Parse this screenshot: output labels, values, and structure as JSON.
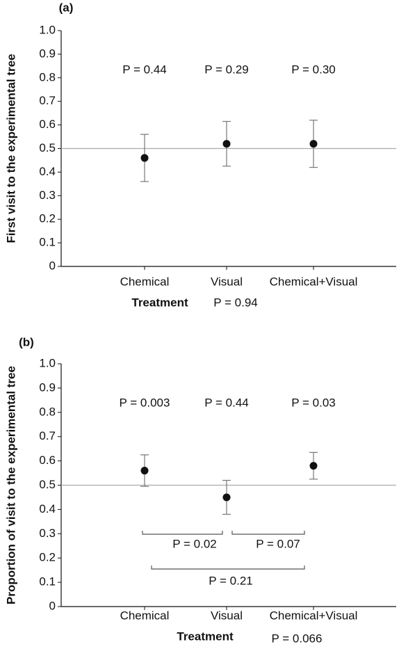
{
  "chart_data": [
    {
      "type": "errorbar",
      "panel_label": "(a)",
      "ylabel": "First visit to the experimental tree",
      "xlabel": "Treatment",
      "xlabel_note": "P = 0.94",
      "categories": [
        "Chemical",
        "Visual",
        "Chemical+Visual"
      ],
      "values": [
        0.46,
        0.52,
        0.52
      ],
      "errors": [
        0.1,
        0.095,
        0.1
      ],
      "color": "#111111",
      "annotations": [
        "P = 0.44",
        "P = 0.29",
        "P = 0.30"
      ],
      "reference_line": 0.5,
      "ylim": [
        0,
        1
      ],
      "yticks": [
        0,
        0.1,
        0.2,
        0.3,
        0.4,
        0.5,
        0.6,
        0.7,
        0.8,
        0.9,
        {
          "value": 1,
          "label": "1.0"
        }
      ]
    },
    {
      "type": "errorbar",
      "panel_label": "(b)",
      "ylabel": "Proportion of visit to the experimental tree",
      "xlabel": "Treatment",
      "xlabel_note": "P = 0.066",
      "categories": [
        "Chemical",
        "Visual",
        "Chemical+Visual"
      ],
      "values": [
        0.56,
        0.45,
        0.58
      ],
      "errors": [
        0.065,
        0.07,
        0.055
      ],
      "color": "#111111",
      "annotations": [
        "P = 0.003",
        "P = 0.44",
        "P = 0.03"
      ],
      "comparisons": [
        {
          "between": [
            0,
            1
          ],
          "label": "P = 0.02"
        },
        {
          "between": [
            1,
            2
          ],
          "label": "P = 0.07"
        },
        {
          "between": [
            0,
            2
          ],
          "label": "P = 0.21"
        }
      ],
      "reference_line": 0.5,
      "ylim": [
        0,
        1
      ],
      "yticks": [
        0,
        0.1,
        0.2,
        0.3,
        0.4,
        0.5,
        0.6,
        0.7,
        0.8,
        0.9,
        {
          "value": 1,
          "label": "1.0"
        }
      ]
    }
  ]
}
